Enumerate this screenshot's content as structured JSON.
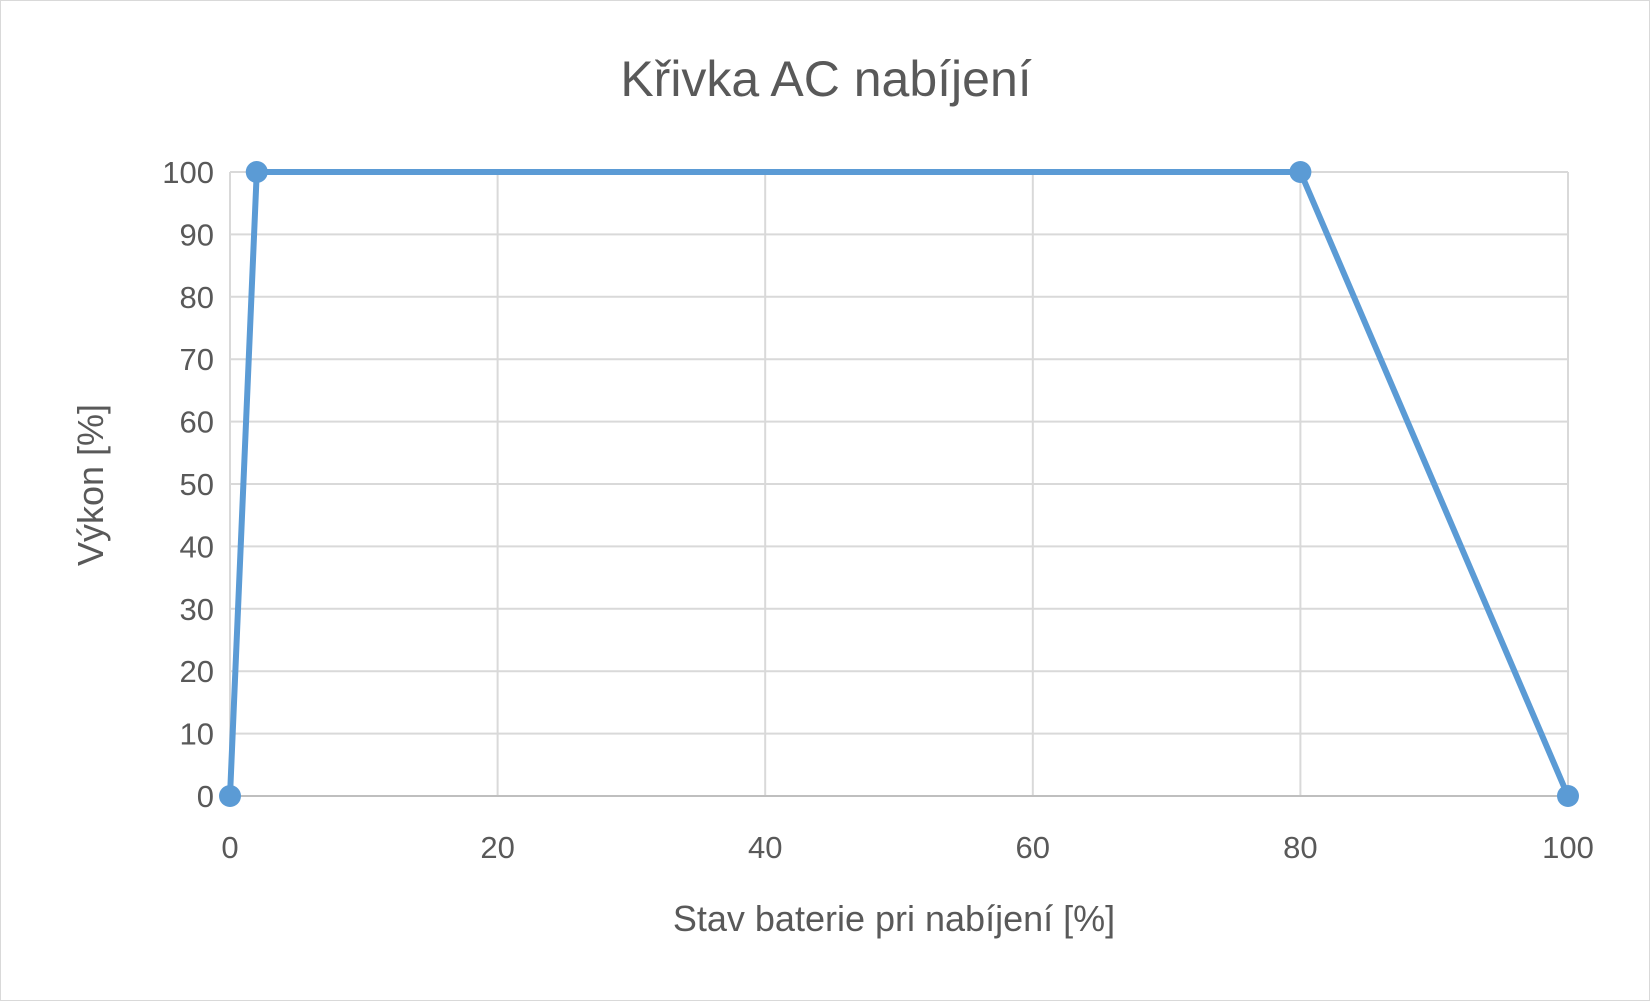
{
  "chart_data": {
    "type": "scatter",
    "title": "Křivka AC nabíjení",
    "xlabel": "Stav baterie pri nabíjení [%]",
    "ylabel": "Výkon [%]",
    "xlim": [
      0,
      100
    ],
    "ylim": [
      0,
      100
    ],
    "x_ticks": [
      "0",
      "20",
      "40",
      "60",
      "80",
      "100"
    ],
    "y_ticks": [
      "0",
      "10",
      "20",
      "30",
      "40",
      "50",
      "60",
      "70",
      "80",
      "90",
      "100"
    ],
    "grid": true,
    "legend": "none",
    "markers": true,
    "lines": "straight",
    "series": [
      {
        "x": [
          0,
          2,
          80,
          100
        ],
        "y": [
          0,
          100,
          100,
          0
        ]
      }
    ],
    "colors": {
      "series": "#5b9bd5",
      "grid": "#d9d9d9",
      "axis": "#bfbfbf",
      "text": "#595959"
    }
  }
}
